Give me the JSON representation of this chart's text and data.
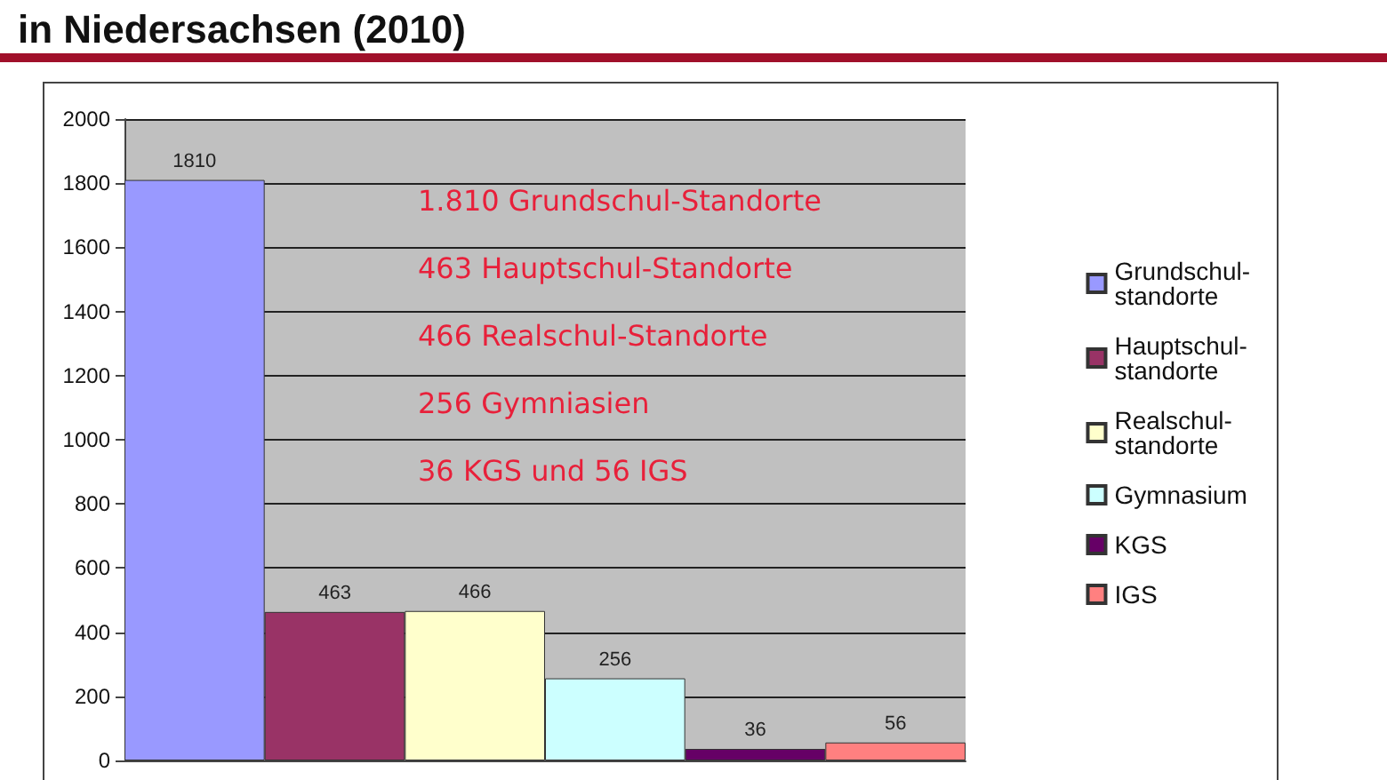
{
  "chart_data": {
    "type": "bar",
    "title": "in Niedersachsen (2010)",
    "categories": [
      null
    ],
    "series": [
      {
        "name": "Grundschul-standorte",
        "color": "#9999ff",
        "values": [
          1810
        ]
      },
      {
        "name": "Hauptschul-standorte",
        "color": "#993366",
        "values": [
          463
        ]
      },
      {
        "name": "Realschul-standorte",
        "color": "#ffffcc",
        "values": [
          466
        ]
      },
      {
        "name": "Gymnasium",
        "color": "#ccffff",
        "values": [
          256
        ]
      },
      {
        "name": "KGS",
        "color": "#660066",
        "values": [
          36
        ]
      },
      {
        "name": "IGS",
        "color": "#ff8080",
        "values": [
          56
        ]
      }
    ],
    "ylim": [
      0,
      2000
    ],
    "yticks": [
      0,
      200,
      400,
      600,
      800,
      1000,
      1200,
      1400,
      1600,
      1800,
      2000
    ],
    "grid": "y",
    "legend": "right",
    "data_labels": true,
    "annotations": [
      "1.810 Grundschul-Standorte",
      "463 Hauptschul-Standorte",
      "466 Realschul-Standorte",
      "256 Gymniasien",
      "36 KGS und 56 IGS"
    ]
  }
}
